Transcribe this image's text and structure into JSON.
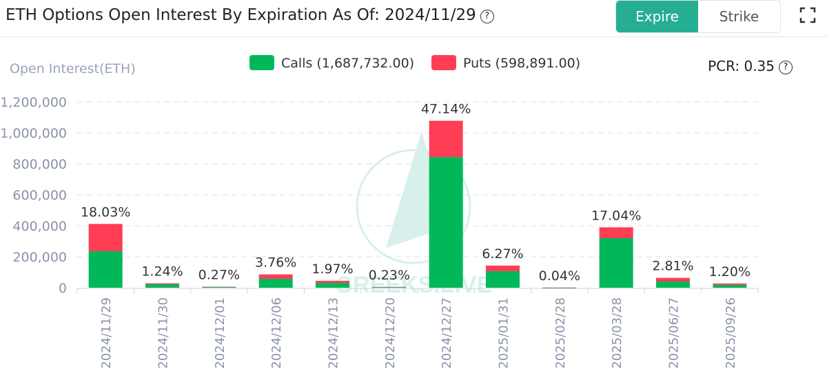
{
  "header": {
    "title": "ETH Options Open Interest By Expiration As Of: 2024/11/29",
    "help_icon": "question-circle-icon"
  },
  "toggle": {
    "expire_label": "Expire",
    "strike_label": "Strike",
    "active": "Expire"
  },
  "fullscreen_icon": "fullscreen-icon",
  "pcr": {
    "label": "PCR: 0.35"
  },
  "colors": {
    "calls": "#00b85a",
    "puts": "#ff3d55",
    "accent": "#26ae93"
  },
  "chart_data": {
    "type": "bar",
    "stacked": true,
    "ylabel": "Open Interest(ETH)",
    "ylim": [
      0,
      1200000
    ],
    "yticks": [
      "0",
      "200,000",
      "400,000",
      "600,000",
      "800,000",
      "1,000,000",
      "1,200,000"
    ],
    "ytick_values": [
      0,
      200000,
      400000,
      600000,
      800000,
      1000000,
      1200000
    ],
    "grid": true,
    "legend_position": "top-center",
    "legend": [
      "Calls (1,687,732.00)",
      "Puts (598,891.00)"
    ],
    "categories": [
      "2024/11/29",
      "2024/11/30",
      "2024/12/01",
      "2024/12/06",
      "2024/12/13",
      "2024/12/20",
      "2024/12/27",
      "2025/01/31",
      "2025/02/28",
      "2025/03/28",
      "2025/06/27",
      "2025/09/26"
    ],
    "series": [
      {
        "name": "Calls",
        "values": [
          236000,
          22000,
          5000,
          58000,
          31000,
          4000,
          844000,
          107000,
          600,
          320000,
          40000,
          18000
        ]
      },
      {
        "name": "Puts",
        "values": [
          176000,
          6400,
          1200,
          28000,
          14000,
          1300,
          234000,
          36000,
          300,
          70000,
          24000,
          9400
        ]
      }
    ],
    "data_labels": [
      "18.03%",
      "1.24%",
      "0.27%",
      "3.76%",
      "1.97%",
      "0.23%",
      "47.14%",
      "6.27%",
      "0.04%",
      "17.04%",
      "2.81%",
      "1.20%"
    ]
  }
}
